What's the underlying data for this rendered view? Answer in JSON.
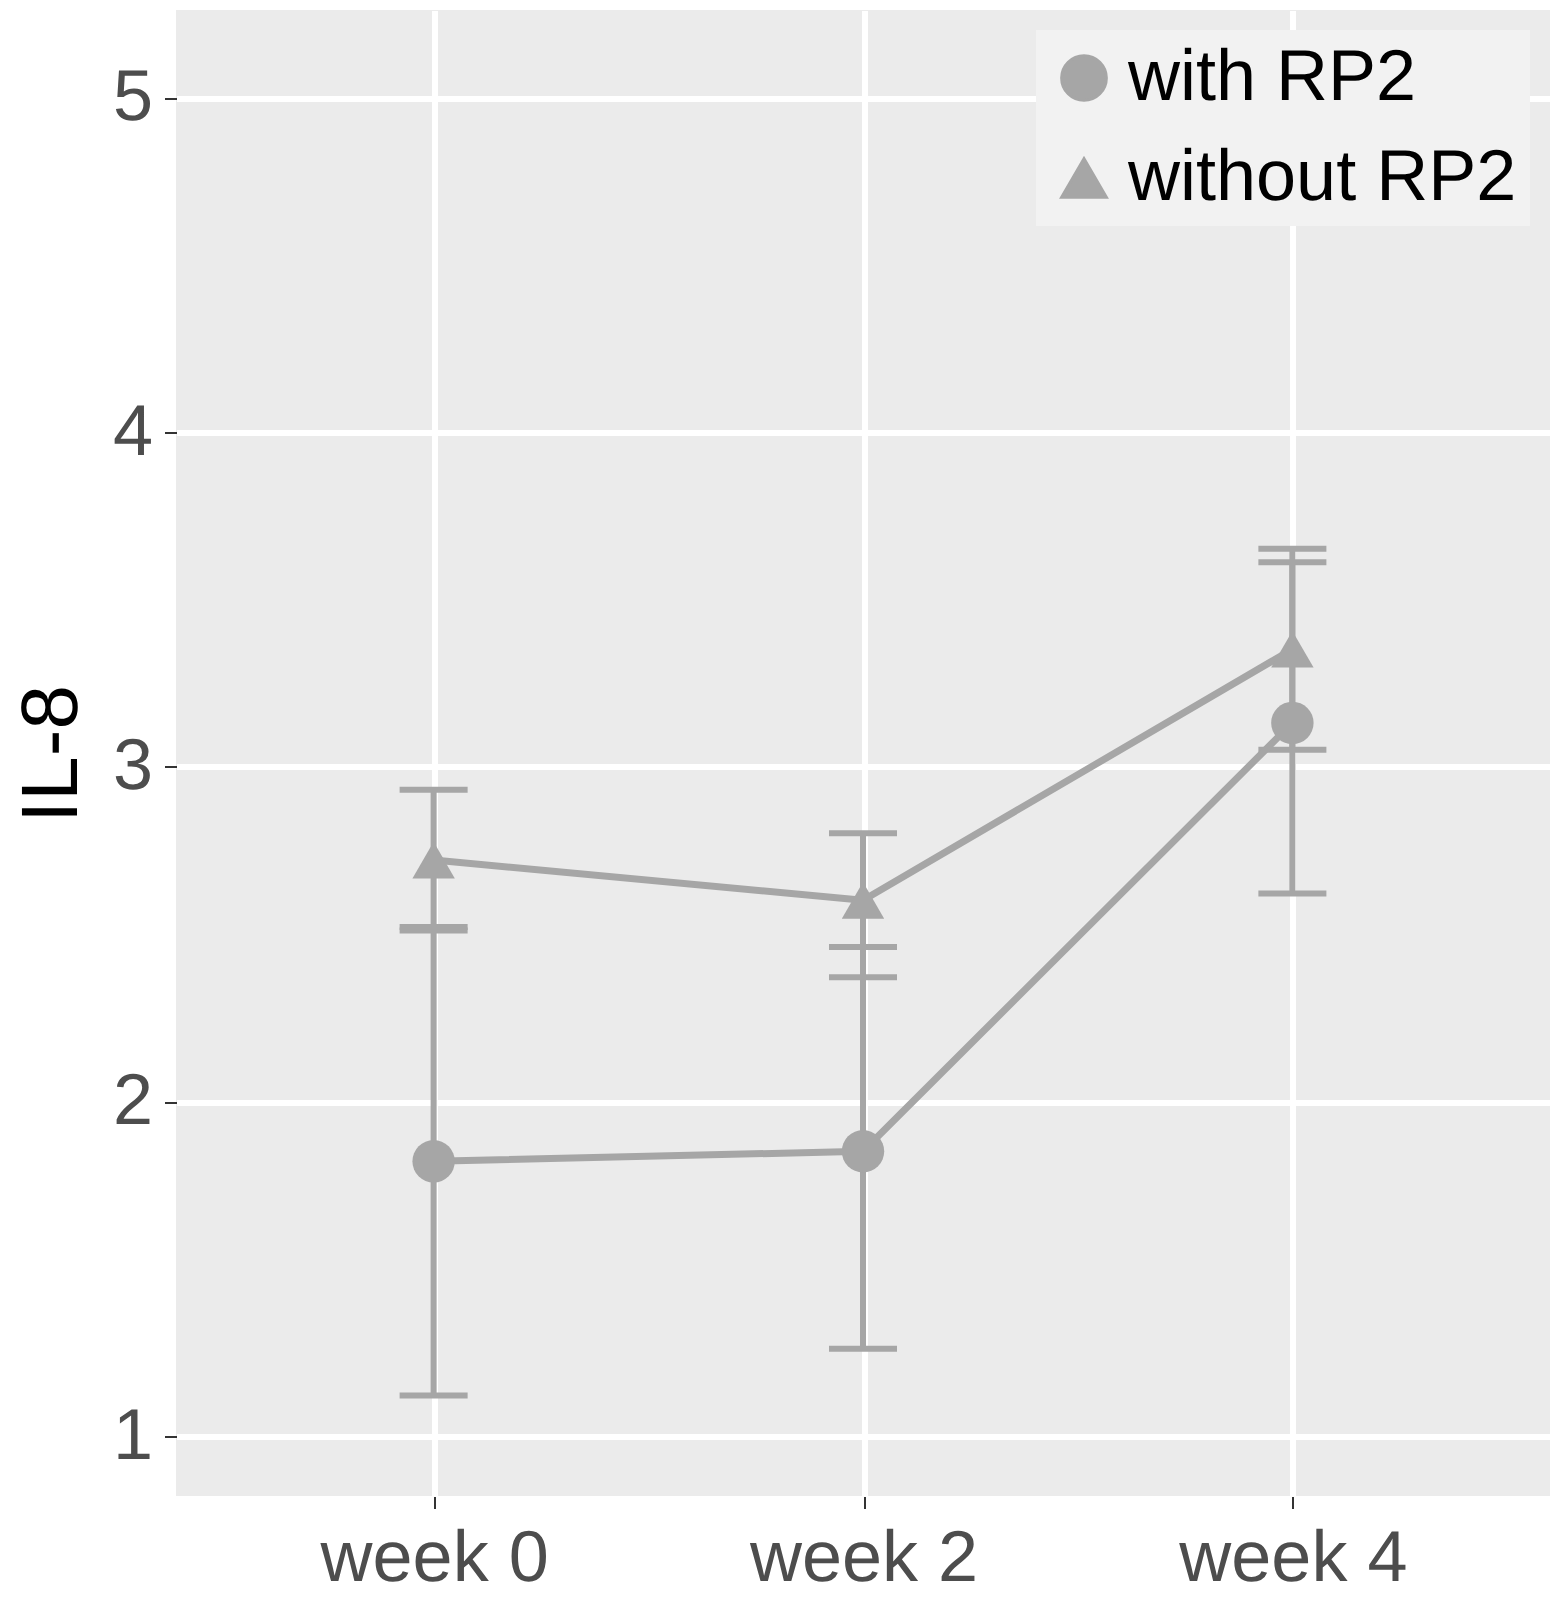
{
  "chart_data": {
    "type": "line",
    "ylabel": "IL-8",
    "categories": [
      "week 0",
      "week 2",
      "week 4"
    ],
    "series": [
      {
        "name": "with RP2",
        "color": "#a6a6a6",
        "marker": "circle",
        "values": [
          1.82,
          1.85,
          3.13
        ],
        "errors": [
          [
            1.12,
            2.52
          ],
          [
            1.26,
            2.46
          ],
          [
            2.62,
            3.65
          ]
        ]
      },
      {
        "name": "without RP2",
        "color": "#a6a6a6",
        "marker": "triangle",
        "values": [
          2.72,
          2.6,
          3.35
        ],
        "errors": [
          [
            2.51,
            2.93
          ],
          [
            2.37,
            2.8
          ],
          [
            3.05,
            3.61
          ]
        ]
      }
    ],
    "ylim": [
      0.82,
      5.26
    ],
    "yticks": [
      1,
      2,
      3,
      4,
      5
    ],
    "grid": true,
    "legend": "top right"
  }
}
